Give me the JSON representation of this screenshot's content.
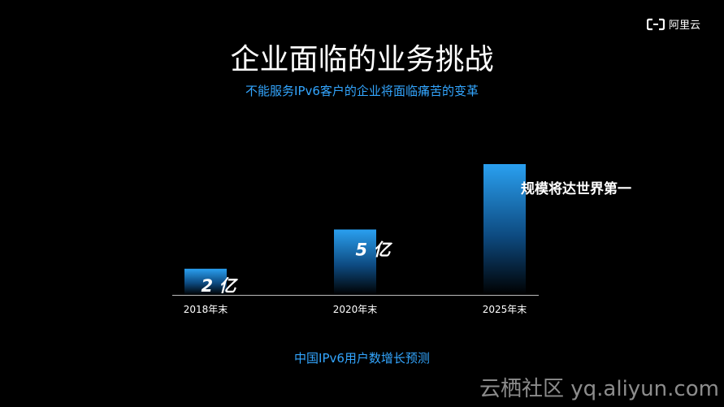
{
  "logo": {
    "icon": "aliyun-logo-icon",
    "text": "阿里云"
  },
  "title": "企业面临的业务挑战",
  "subtitle": "不能服务IPv6客户的企业将面临痛苦的变革",
  "caption": "中国IPv6用户数增长预测",
  "watermark": "云栖社区 yq.aliyun.com",
  "colors": {
    "accent": "#33a6ff",
    "bar_top": "#2aa0f0"
  },
  "chart_data": {
    "type": "bar",
    "categories": [
      "2018年末",
      "2020年末",
      "2025年末"
    ],
    "values": [
      2,
      5,
      10
    ],
    "data_labels": [
      "2 亿",
      "5 亿",
      "规模将达世界第一"
    ],
    "unit": "亿",
    "title": "",
    "xlabel": "中国IPv6用户数增长预测",
    "ylabel": "",
    "ylim": [
      0,
      10
    ],
    "grid": false
  }
}
